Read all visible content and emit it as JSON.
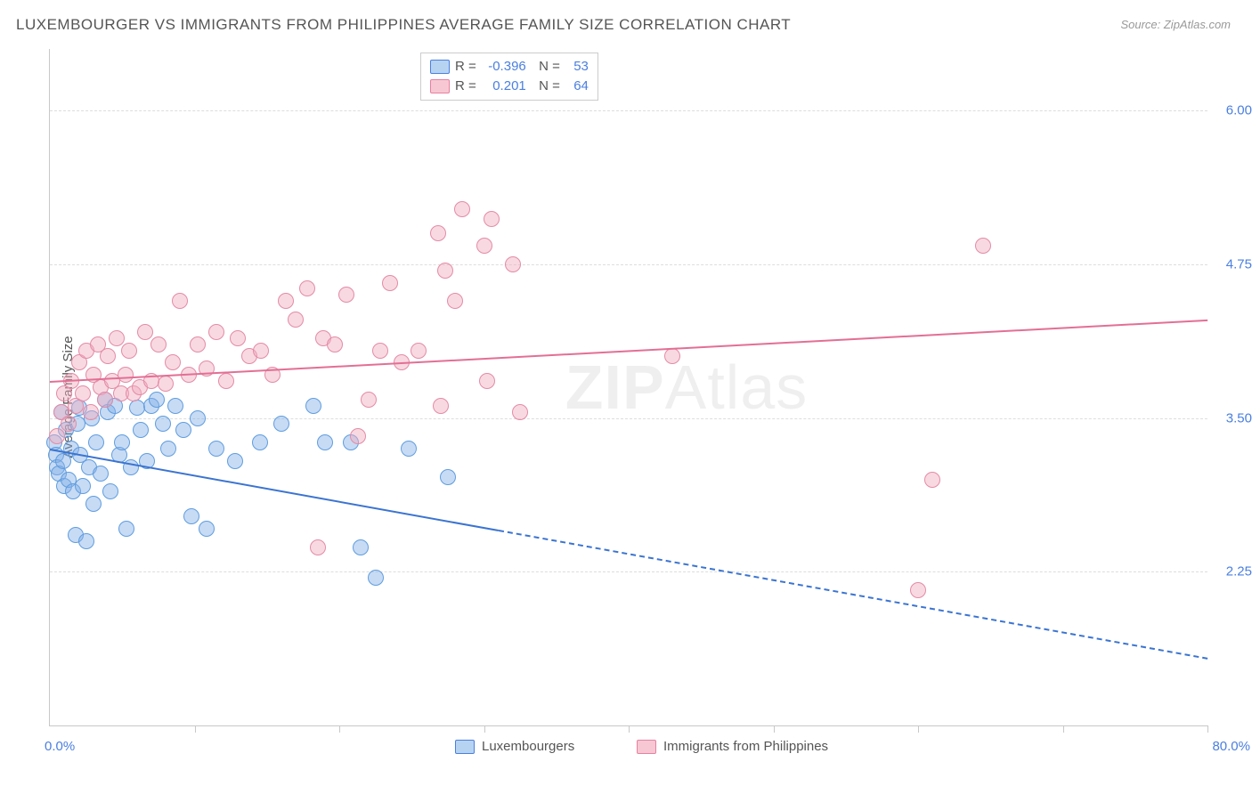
{
  "title": "LUXEMBOURGER VS IMMIGRANTS FROM PHILIPPINES AVERAGE FAMILY SIZE CORRELATION CHART",
  "source": "Source: ZipAtlas.com",
  "ylabel": "Average Family Size",
  "watermark_prefix": "ZIP",
  "watermark_suffix": "Atlas",
  "plot": {
    "xlim": [
      0,
      80
    ],
    "ylim": [
      1.0,
      6.5
    ],
    "background_color": "#ffffff",
    "grid_color": "#dddddd",
    "marker_radius": 9,
    "marker_stroke_width": 1.5,
    "y_ticks": [
      2.25,
      3.5,
      4.75,
      6.0
    ],
    "x_tick_positions": [
      0,
      10,
      20,
      30,
      40,
      50,
      60,
      70,
      80
    ],
    "x_axis_left_label": "0.0%",
    "x_axis_right_label": "80.0%",
    "ytick_color": "#4a7fe0",
    "xtick_color": "#4a7fe0"
  },
  "stats": [
    {
      "R": "-0.396",
      "N": "53",
      "swatch_fill": "#b7d3f2",
      "swatch_stroke": "#4a7fe0"
    },
    {
      "R": "0.201",
      "N": "64",
      "swatch_fill": "#f7c8d4",
      "swatch_stroke": "#e97fa0"
    }
  ],
  "legend": [
    {
      "label": "Luxembourgers",
      "fill": "#b7d3f2",
      "stroke": "#4a7fe0"
    },
    {
      "label": "Immigrants from Philippines",
      "fill": "#f7c8d4",
      "stroke": "#e97fa0"
    }
  ],
  "series": [
    {
      "name": "Luxembourgers",
      "fill": "rgba(130,176,230,0.45)",
      "stroke": "#5f9de0",
      "trend_color": "#3b74d1",
      "trend": {
        "x0": 0,
        "y0": 3.25,
        "x1_solid": 31,
        "x1_dash": 80,
        "y_at_80": 1.55
      },
      "points": [
        [
          0.3,
          3.3
        ],
        [
          0.4,
          3.2
        ],
        [
          0.5,
          3.1
        ],
        [
          0.6,
          3.05
        ],
        [
          0.8,
          3.55
        ],
        [
          0.9,
          3.15
        ],
        [
          1.0,
          2.95
        ],
        [
          1.1,
          3.4
        ],
        [
          1.3,
          3.0
        ],
        [
          1.5,
          3.25
        ],
        [
          1.6,
          2.9
        ],
        [
          1.8,
          2.55
        ],
        [
          1.9,
          3.45
        ],
        [
          2.0,
          3.58
        ],
        [
          2.1,
          3.2
        ],
        [
          2.3,
          2.95
        ],
        [
          2.5,
          2.5
        ],
        [
          2.7,
          3.1
        ],
        [
          2.9,
          3.5
        ],
        [
          3.0,
          2.8
        ],
        [
          3.2,
          3.3
        ],
        [
          3.5,
          3.05
        ],
        [
          3.8,
          3.65
        ],
        [
          4.0,
          3.55
        ],
        [
          4.2,
          2.9
        ],
        [
          4.5,
          3.6
        ],
        [
          4.8,
          3.2
        ],
        [
          5.0,
          3.3
        ],
        [
          5.3,
          2.6
        ],
        [
          5.6,
          3.1
        ],
        [
          6.0,
          3.58
        ],
        [
          6.3,
          3.4
        ],
        [
          6.7,
          3.15
        ],
        [
          7.0,
          3.6
        ],
        [
          7.4,
          3.65
        ],
        [
          7.8,
          3.45
        ],
        [
          8.2,
          3.25
        ],
        [
          8.7,
          3.6
        ],
        [
          9.2,
          3.4
        ],
        [
          9.8,
          2.7
        ],
        [
          10.2,
          3.5
        ],
        [
          10.8,
          2.6
        ],
        [
          11.5,
          3.25
        ],
        [
          12.8,
          3.15
        ],
        [
          14.5,
          3.3
        ],
        [
          16.0,
          3.45
        ],
        [
          18.2,
          3.6
        ],
        [
          19.0,
          3.3
        ],
        [
          20.8,
          3.3
        ],
        [
          21.5,
          2.45
        ],
        [
          22.5,
          2.2
        ],
        [
          24.8,
          3.25
        ],
        [
          27.5,
          3.02
        ]
      ]
    },
    {
      "name": "Immigrants from Philippines",
      "fill": "rgba(240,170,190,0.45)",
      "stroke": "#e48ba6",
      "trend_color": "#e36f95",
      "trend": {
        "x0": 0,
        "y0": 3.8,
        "x1_solid": 80,
        "x1_dash": 80,
        "y_at_80": 4.3
      },
      "points": [
        [
          0.5,
          3.35
        ],
        [
          0.8,
          3.55
        ],
        [
          1.0,
          3.7
        ],
        [
          1.3,
          3.45
        ],
        [
          1.5,
          3.8
        ],
        [
          1.8,
          3.6
        ],
        [
          2.0,
          3.95
        ],
        [
          2.3,
          3.7
        ],
        [
          2.5,
          4.05
        ],
        [
          2.8,
          3.55
        ],
        [
          3.0,
          3.85
        ],
        [
          3.3,
          4.1
        ],
        [
          3.5,
          3.75
        ],
        [
          3.8,
          3.65
        ],
        [
          4.0,
          4.0
        ],
        [
          4.3,
          3.8
        ],
        [
          4.6,
          4.15
        ],
        [
          4.9,
          3.7
        ],
        [
          5.2,
          3.85
        ],
        [
          5.5,
          4.05
        ],
        [
          5.8,
          3.7
        ],
        [
          6.2,
          3.75
        ],
        [
          6.6,
          4.2
        ],
        [
          7.0,
          3.8
        ],
        [
          7.5,
          4.1
        ],
        [
          8.0,
          3.78
        ],
        [
          8.5,
          3.95
        ],
        [
          9.0,
          4.45
        ],
        [
          9.6,
          3.85
        ],
        [
          10.2,
          4.1
        ],
        [
          10.8,
          3.9
        ],
        [
          11.5,
          4.2
        ],
        [
          12.2,
          3.8
        ],
        [
          13.0,
          4.15
        ],
        [
          13.8,
          4.0
        ],
        [
          14.6,
          4.05
        ],
        [
          15.4,
          3.85
        ],
        [
          16.3,
          4.45
        ],
        [
          17.0,
          4.3
        ],
        [
          17.8,
          4.55
        ],
        [
          18.5,
          2.45
        ],
        [
          18.9,
          4.15
        ],
        [
          19.7,
          4.1
        ],
        [
          20.5,
          4.5
        ],
        [
          21.3,
          3.35
        ],
        [
          22.0,
          3.65
        ],
        [
          22.8,
          4.05
        ],
        [
          23.5,
          4.6
        ],
        [
          24.3,
          3.95
        ],
        [
          25.5,
          4.05
        ],
        [
          26.8,
          5.0
        ],
        [
          27.0,
          3.6
        ],
        [
          27.3,
          4.7
        ],
        [
          28.0,
          4.45
        ],
        [
          28.5,
          5.2
        ],
        [
          30.0,
          4.9
        ],
        [
          30.2,
          3.8
        ],
        [
          30.5,
          5.12
        ],
        [
          32.0,
          4.75
        ],
        [
          32.5,
          3.55
        ],
        [
          43.0,
          4.0
        ],
        [
          60.0,
          2.1
        ],
        [
          61.0,
          3.0
        ],
        [
          64.5,
          4.9
        ]
      ]
    }
  ]
}
